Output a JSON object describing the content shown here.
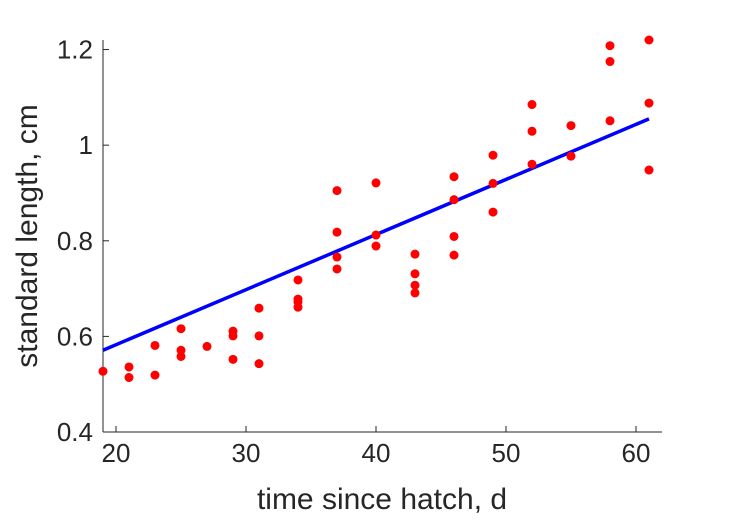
{
  "chart_data": {
    "type": "scatter",
    "xlabel": "time since hatch, d",
    "ylabel": "standard length, cm",
    "xlim": [
      19,
      62
    ],
    "ylim": [
      0.4,
      1.22
    ],
    "xticks": [
      20,
      30,
      40,
      50,
      60
    ],
    "yticks": [
      0.4,
      0.6,
      0.8,
      1.0,
      1.2
    ],
    "xtick_labels": [
      "20",
      "30",
      "40",
      "50",
      "60"
    ],
    "ytick_labels": [
      "0.4",
      "0.6",
      "0.8",
      "1",
      "1.2"
    ],
    "grid": false,
    "series": [
      {
        "kind": "points",
        "color": "#ff0000",
        "points": [
          [
            19,
            0.527
          ],
          [
            21,
            0.536
          ],
          [
            21,
            0.514
          ],
          [
            23,
            0.581
          ],
          [
            23,
            0.519
          ],
          [
            25,
            0.616
          ],
          [
            25,
            0.571
          ],
          [
            25,
            0.558
          ],
          [
            27,
            0.579
          ],
          [
            29,
            0.611
          ],
          [
            29,
            0.601
          ],
          [
            29,
            0.552
          ],
          [
            31,
            0.659
          ],
          [
            31,
            0.601
          ],
          [
            31,
            0.543
          ],
          [
            34,
            0.718
          ],
          [
            34,
            0.678
          ],
          [
            34,
            0.672
          ],
          [
            34,
            0.661
          ],
          [
            37,
            0.905
          ],
          [
            37,
            0.818
          ],
          [
            37,
            0.766
          ],
          [
            37,
            0.741
          ],
          [
            40,
            0.921
          ],
          [
            40,
            0.812
          ],
          [
            40,
            0.789
          ],
          [
            43,
            0.772
          ],
          [
            43,
            0.731
          ],
          [
            43,
            0.707
          ],
          [
            43,
            0.691
          ],
          [
            46,
            0.934
          ],
          [
            46,
            0.886
          ],
          [
            46,
            0.809
          ],
          [
            46,
            0.77
          ],
          [
            49,
            0.979
          ],
          [
            49,
            0.92
          ],
          [
            49,
            0.86
          ],
          [
            52,
            1.085
          ],
          [
            52,
            1.029
          ],
          [
            52,
            0.96
          ],
          [
            55,
            1.041
          ],
          [
            55,
            0.977
          ],
          [
            58,
            1.208
          ],
          [
            58,
            1.175
          ],
          [
            58,
            1.051
          ],
          [
            61,
            1.22
          ],
          [
            61,
            1.088
          ],
          [
            61,
            0.948
          ]
        ]
      },
      {
        "kind": "fit-line",
        "color": "#0000ff",
        "x": [
          19,
          61
        ],
        "y": [
          0.571,
          1.055
        ]
      }
    ]
  }
}
